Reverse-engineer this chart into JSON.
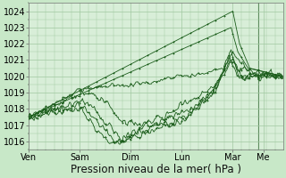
{
  "background_color": "#c8e8c8",
  "plot_bg_color": "#d8eed8",
  "grid_color": "#a0c8a0",
  "line_color": "#1a5c1a",
  "xlabel": "Pression niveau de la mer( hPa )",
  "ylim": [
    1015.5,
    1024.5
  ],
  "yticks": [
    1016,
    1017,
    1018,
    1019,
    1020,
    1021,
    1022,
    1023,
    1024
  ],
  "day_labels": [
    "Ven",
    "Sam",
    "Dim",
    "Lun",
    "Mar",
    "Me"
  ],
  "day_positions": [
    0,
    60,
    120,
    180,
    240,
    276
  ],
  "total_points": 300,
  "xlabel_fontsize": 8.5,
  "tick_fontsize": 7
}
